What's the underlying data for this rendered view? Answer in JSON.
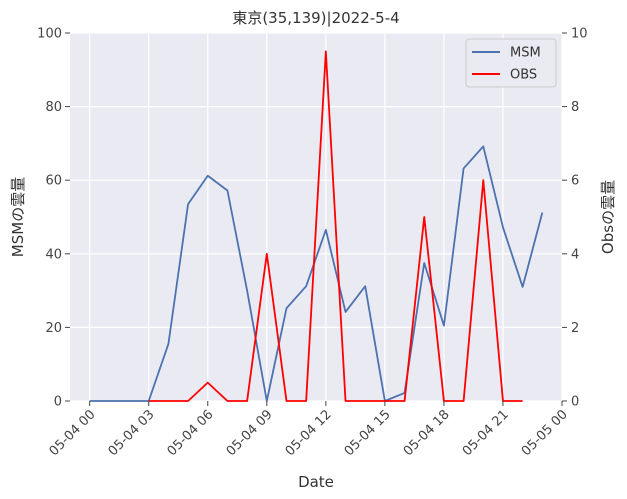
{
  "chart_data": {
    "type": "line",
    "title": "東京(35,139)|2022-5-4",
    "xlabel": "Date",
    "ylabel": "MSMの雲量",
    "y2label": "Obsの雲量",
    "xlim": [
      -1,
      24
    ],
    "x_ticks": [
      0,
      3,
      6,
      9,
      12,
      15,
      18,
      21,
      24
    ],
    "x_tick_labels": [
      "05-04 00",
      "05-04 03",
      "05-04 06",
      "05-04 09",
      "05-04 12",
      "05-04 15",
      "05-04 18",
      "05-04 21",
      "05-05 00"
    ],
    "ylim": [
      0,
      100
    ],
    "y_ticks": [
      0,
      20,
      40,
      60,
      80,
      100
    ],
    "y2lim": [
      0,
      10
    ],
    "y2_ticks": [
      0,
      2,
      4,
      6,
      8,
      10
    ],
    "grid": true,
    "legend_position": "top-right",
    "series": [
      {
        "name": "MSM",
        "axis": "left",
        "color": "#4c72b0",
        "x": [
          0,
          1,
          2,
          3,
          4,
          5,
          6,
          7,
          8,
          9,
          10,
          11,
          12,
          13,
          14,
          15,
          16,
          17,
          18,
          19,
          20,
          21,
          22,
          23
        ],
        "values": [
          0,
          0,
          0,
          0,
          15.5,
          53.5,
          61.2,
          57.2,
          30,
          0,
          25.2,
          31.2,
          46.5,
          24.2,
          31.2,
          0,
          2.2,
          37.5,
          20.5,
          63.2,
          69.2,
          47.2,
          31,
          51.2
        ]
      },
      {
        "name": "OBS",
        "axis": "right",
        "color": "#ff0000",
        "x": [
          3,
          4,
          5,
          6,
          7,
          8,
          9,
          10,
          11,
          12,
          13,
          14,
          15,
          16,
          17,
          18,
          19,
          20,
          21,
          22
        ],
        "values": [
          0,
          0,
          0,
          0.5,
          0,
          0,
          4,
          0,
          0,
          9.5,
          0,
          0,
          0,
          0,
          5,
          0,
          0,
          6,
          0,
          0
        ]
      }
    ]
  }
}
